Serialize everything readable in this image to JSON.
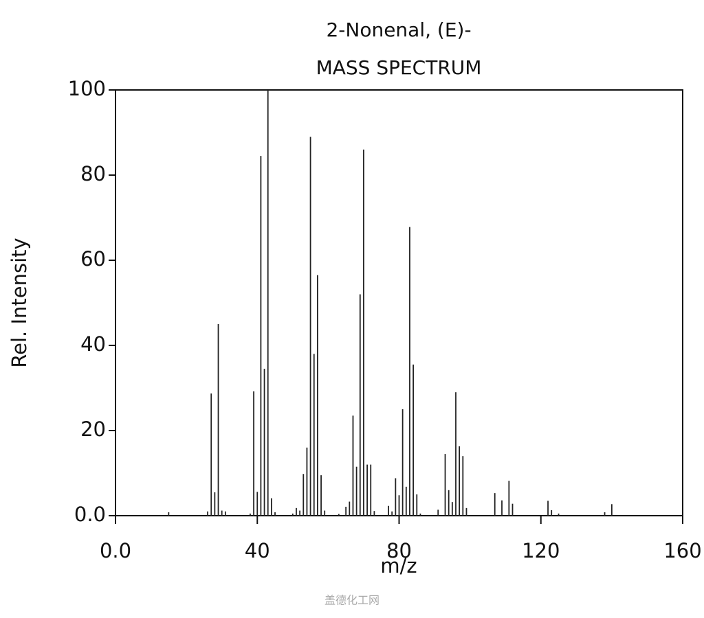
{
  "chart_data": {
    "type": "bar",
    "title": "2-Nonenal, (E)-",
    "subtitle": "MASS SPECTRUM",
    "x_label": "m/z",
    "y_label": "Rel. Intensity",
    "watermark": "盖德化工网",
    "color": "#222222",
    "x": [
      15,
      26,
      27,
      28,
      29,
      30,
      31,
      38,
      39,
      40,
      41,
      42,
      43,
      44,
      45,
      50,
      51,
      52,
      53,
      54,
      55,
      56,
      57,
      58,
      59,
      63,
      65,
      66,
      67,
      68,
      69,
      70,
      71,
      72,
      73,
      77,
      78,
      79,
      80,
      81,
      82,
      83,
      84,
      85,
      86,
      91,
      93,
      94,
      95,
      96,
      97,
      98,
      99,
      107,
      109,
      111,
      112,
      122,
      123,
      125,
      138,
      140
    ],
    "values": [
      0.8,
      1.0,
      28.7,
      5.5,
      45,
      1.2,
      1.0,
      0.5,
      29.2,
      5.6,
      84.5,
      34.5,
      100,
      4.1,
      0.8,
      0.5,
      1.8,
      1.2,
      9.8,
      16,
      89,
      38,
      56.5,
      9.5,
      1.2,
      0.4,
      2.1,
      3.3,
      23.5,
      11.5,
      52,
      86,
      12,
      12,
      1.1,
      2.3,
      1.0,
      8.8,
      4.8,
      25,
      6.8,
      67.8,
      35.5,
      5,
      0.5,
      1.4,
      14.5,
      6,
      3.2,
      29,
      16.3,
      14,
      1.8,
      5.3,
      3.6,
      8.2,
      2.8,
      3.5,
      1.3,
      0.5,
      0.8,
      2.7
    ],
    "xlim": [
      0,
      160
    ],
    "xticks": [
      {
        "value": 0,
        "label": "0.0"
      },
      40,
      80,
      120,
      160
    ],
    "ylim": [
      0,
      100
    ],
    "yticks": [
      {
        "value": 0,
        "label": "0.0"
      },
      20,
      40,
      60,
      80,
      100
    ],
    "grid": false
  }
}
